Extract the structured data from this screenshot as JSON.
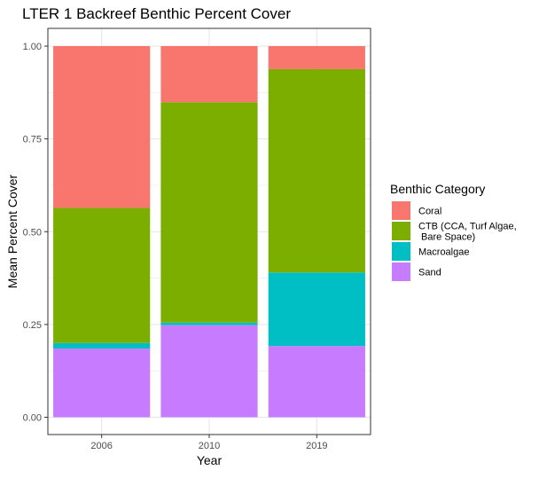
{
  "chart_data": {
    "type": "bar",
    "stacked": true,
    "title": "LTER 1 Backreef Benthic Percent Cover",
    "xlabel": "Year",
    "ylabel": "Mean Percent Cover",
    "categories": [
      "2006",
      "2010",
      "2019"
    ],
    "ylim": [
      0,
      1
    ],
    "yticks": [
      "0.00",
      "0.25",
      "0.50",
      "0.75",
      "1.00"
    ],
    "grid": true,
    "legend": {
      "title": "Benthic Category",
      "position": "right"
    },
    "series": [
      {
        "name": "Sand",
        "color": "#C77CFF",
        "values": [
          0.185,
          0.248,
          0.192
        ]
      },
      {
        "name": "Macroalgae",
        "color": "#00BFC4",
        "values": [
          0.015,
          0.007,
          0.198
        ]
      },
      {
        "name": "CTB (CCA, Turf Algae,\n Bare Space)",
        "color": "#7CAE00",
        "values": [
          0.364,
          0.594,
          0.548
        ]
      },
      {
        "name": "Coral",
        "color": "#F8766D",
        "values": [
          0.436,
          0.151,
          0.062
        ]
      }
    ],
    "legend_order": [
      "Coral",
      "CTB (CCA, Turf Algae,\n Bare Space)",
      "Macroalgae",
      "Sand"
    ]
  }
}
